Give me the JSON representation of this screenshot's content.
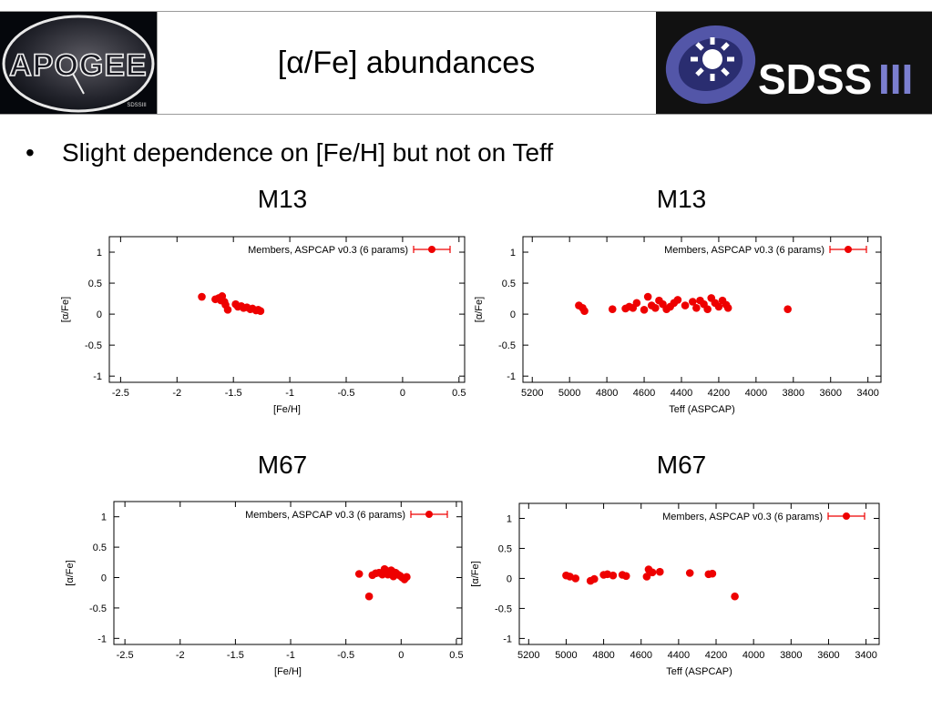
{
  "header": {
    "title": "[α/Fe] abundances",
    "left_logo": {
      "icon": "apogee-logo",
      "text": "APOGEE",
      "sub_text": "SDSSIII"
    },
    "right_logo": {
      "icon": "sdss-logo",
      "text": "SDSS",
      "suffix": "III"
    }
  },
  "bullet": {
    "symbol": "•",
    "text": "Slight dependence on [Fe/H] but not on Teff"
  },
  "colors": {
    "points": "#ee0000",
    "axis": "#000000",
    "header_border": "#9a9a9a"
  },
  "panels": [
    {
      "title": "M13"
    },
    {
      "title": "M13"
    },
    {
      "title": "M67"
    },
    {
      "title": "M67"
    }
  ],
  "chart_data": [
    {
      "type": "scatter",
      "title": "M13",
      "xlabel": "[Fe/H]",
      "ylabel": "[α/Fe]",
      "xlim": [
        -2.6,
        0.55
      ],
      "ylim": [
        -1.1,
        1.25
      ],
      "xticks": [
        "-2.5",
        "-2",
        "-1.5",
        "-1",
        "-0.5",
        "0",
        "0.5"
      ],
      "xtick_values": [
        -2.5,
        -2,
        -1.5,
        -1,
        -0.5,
        0,
        0.5
      ],
      "yticks": [
        "1",
        "0.5",
        "0",
        "-0.5",
        "-1"
      ],
      "ytick_values": [
        1,
        0.5,
        0,
        -0.5,
        -1
      ],
      "legend": "Members, ASPCAP v0.3 (6 params)",
      "legend_position": "top-right",
      "series": [
        {
          "name": "Members, ASPCAP v0.3 (6 params)",
          "x": [
            -1.78,
            -1.66,
            -1.63,
            -1.61,
            -1.6,
            -1.58,
            -1.57,
            -1.55,
            -1.48,
            -1.46,
            -1.43,
            -1.41,
            -1.38,
            -1.35,
            -1.33,
            -1.3,
            -1.28,
            -1.26
          ],
          "y": [
            0.28,
            0.24,
            0.26,
            0.22,
            0.29,
            0.2,
            0.15,
            0.07,
            0.16,
            0.12,
            0.13,
            0.1,
            0.11,
            0.08,
            0.09,
            0.06,
            0.07,
            0.05
          ]
        }
      ]
    },
    {
      "type": "scatter",
      "title": "M13",
      "xlabel": "Teff (ASPCAP)",
      "ylabel": "[α/Fe]",
      "xlim": [
        5250,
        3330
      ],
      "ylim": [
        -1.1,
        1.25
      ],
      "xticks": [
        "5200",
        "5000",
        "4800",
        "4600",
        "4400",
        "4200",
        "4000",
        "3800",
        "3600",
        "3400"
      ],
      "xtick_values": [
        5200,
        5000,
        4800,
        4600,
        4400,
        4200,
        4000,
        3800,
        3600,
        3400
      ],
      "yticks": [
        "1",
        "0.5",
        "0",
        "-0.5",
        "-1"
      ],
      "ytick_values": [
        1,
        0.5,
        0,
        -0.5,
        -1
      ],
      "legend": "Members, ASPCAP v0.3 (6 params)",
      "legend_position": "top-right",
      "series": [
        {
          "name": "Members, ASPCAP v0.3 (6 params)",
          "x": [
            4950,
            4930,
            4920,
            4770,
            4700,
            4680,
            4660,
            4640,
            4600,
            4580,
            4560,
            4540,
            4520,
            4500,
            4480,
            4460,
            4440,
            4420,
            4380,
            4340,
            4320,
            4300,
            4280,
            4260,
            4240,
            4220,
            4200,
            4180,
            4160,
            4150,
            3830
          ],
          "y": [
            0.14,
            0.1,
            0.05,
            0.08,
            0.09,
            0.12,
            0.1,
            0.18,
            0.07,
            0.28,
            0.14,
            0.1,
            0.22,
            0.16,
            0.08,
            0.12,
            0.18,
            0.23,
            0.14,
            0.2,
            0.1,
            0.22,
            0.16,
            0.08,
            0.26,
            0.18,
            0.12,
            0.22,
            0.15,
            0.1,
            0.08
          ]
        }
      ]
    },
    {
      "type": "scatter",
      "title": "M67",
      "xlabel": "[Fe/H]",
      "ylabel": "[α/Fe]",
      "xlim": [
        -2.6,
        0.55
      ],
      "ylim": [
        -1.1,
        1.25
      ],
      "xticks": [
        "-2.5",
        "-2",
        "-1.5",
        "-1",
        "-0.5",
        "0",
        "0.5"
      ],
      "xtick_values": [
        -2.5,
        -2,
        -1.5,
        -1,
        -0.5,
        0,
        0.5
      ],
      "yticks": [
        "1",
        "0.5",
        "0",
        "-0.5",
        "-1"
      ],
      "ytick_values": [
        1,
        0.5,
        0,
        -0.5,
        -1
      ],
      "legend": "Members, ASPCAP v0.3 (6 params)",
      "legend_position": "top-right",
      "series": [
        {
          "name": "Members, ASPCAP v0.3 (6 params)",
          "x": [
            -0.38,
            -0.29,
            -0.26,
            -0.23,
            -0.2,
            -0.17,
            -0.15,
            -0.13,
            -0.11,
            -0.09,
            -0.07,
            -0.05,
            -0.03,
            -0.01,
            0.01,
            0.03,
            0.05,
            -0.12,
            -0.08
          ],
          "y": [
            0.06,
            -0.31,
            0.04,
            0.07,
            0.08,
            0.05,
            0.14,
            0.11,
            0.09,
            0.12,
            0.02,
            0.08,
            0.05,
            0.03,
            0.0,
            -0.03,
            0.01,
            0.05,
            0.1
          ]
        }
      ]
    },
    {
      "type": "scatter",
      "title": "M67",
      "xlabel": "Teff (ASPCAP)",
      "ylabel": "[α/Fe]",
      "xlim": [
        5250,
        3330
      ],
      "ylim": [
        -1.1,
        1.25
      ],
      "xticks": [
        "5200",
        "5000",
        "4800",
        "4600",
        "4400",
        "4200",
        "4000",
        "3800",
        "3600",
        "3400"
      ],
      "xtick_values": [
        5200,
        5000,
        4800,
        4600,
        4400,
        4200,
        4000,
        3800,
        3600,
        3400
      ],
      "yticks": [
        "1",
        "0.5",
        "0",
        "-0.5",
        "-1"
      ],
      "ytick_values": [
        1,
        0.5,
        0,
        -0.5,
        -1
      ],
      "legend": "Members, ASPCAP v0.3 (6 params)",
      "legend_position": "top-right",
      "series": [
        {
          "name": "Members, ASPCAP v0.3 (6 params)",
          "x": [
            5000,
            4980,
            4950,
            4870,
            4850,
            4800,
            4780,
            4750,
            4700,
            4680,
            4570,
            4560,
            4540,
            4500,
            4340,
            4240,
            4220,
            4100
          ],
          "y": [
            0.05,
            0.03,
            0.0,
            -0.04,
            -0.01,
            0.06,
            0.07,
            0.05,
            0.06,
            0.04,
            0.03,
            0.15,
            0.1,
            0.11,
            0.09,
            0.07,
            0.08,
            -0.3
          ]
        }
      ]
    }
  ]
}
